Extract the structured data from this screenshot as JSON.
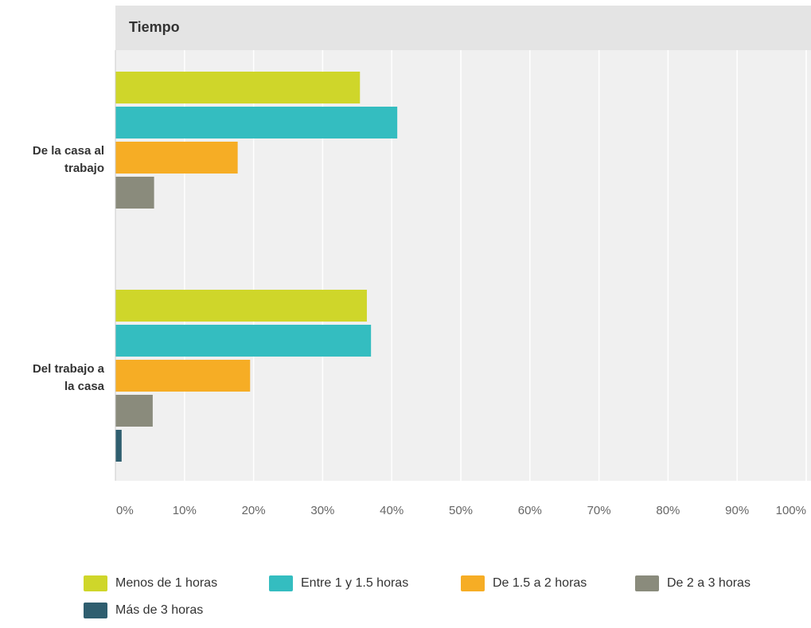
{
  "chart_data": {
    "type": "bar",
    "orientation": "horizontal",
    "title": "Tiempo",
    "categories": [
      "De la casa al trabajo",
      "Del trabajo a la casa"
    ],
    "category_lines": [
      [
        "De la casa al",
        "trabajo"
      ],
      [
        "Del trabajo a",
        "la casa"
      ]
    ],
    "series": [
      {
        "name": "Menos de 1 horas",
        "color": "#cfd62a",
        "values": [
          35.4,
          36.4
        ]
      },
      {
        "name": "Entre 1 y 1.5 horas",
        "color": "#34bdc0",
        "values": [
          40.8,
          37.0
        ]
      },
      {
        "name": "De 1.5 a 2 horas",
        "color": "#f6ad25",
        "values": [
          17.7,
          19.5
        ]
      },
      {
        "name": "De 2 a 3 horas",
        "color": "#8a8b7c",
        "values": [
          5.6,
          5.4
        ]
      },
      {
        "name": "Más de 3 horas",
        "color": "#2f5e6f",
        "values": [
          0,
          0.9
        ]
      }
    ],
    "xlim": [
      0,
      100
    ],
    "xticks": [
      "0%",
      "10%",
      "20%",
      "30%",
      "40%",
      "50%",
      "60%",
      "70%",
      "80%",
      "90%",
      "100%"
    ],
    "grid": true,
    "legend_position": "bottom"
  },
  "colors": {
    "plot_background": "#f0f0f0",
    "header_background": "#e4e4e4",
    "gridline": "#ffffff"
  }
}
